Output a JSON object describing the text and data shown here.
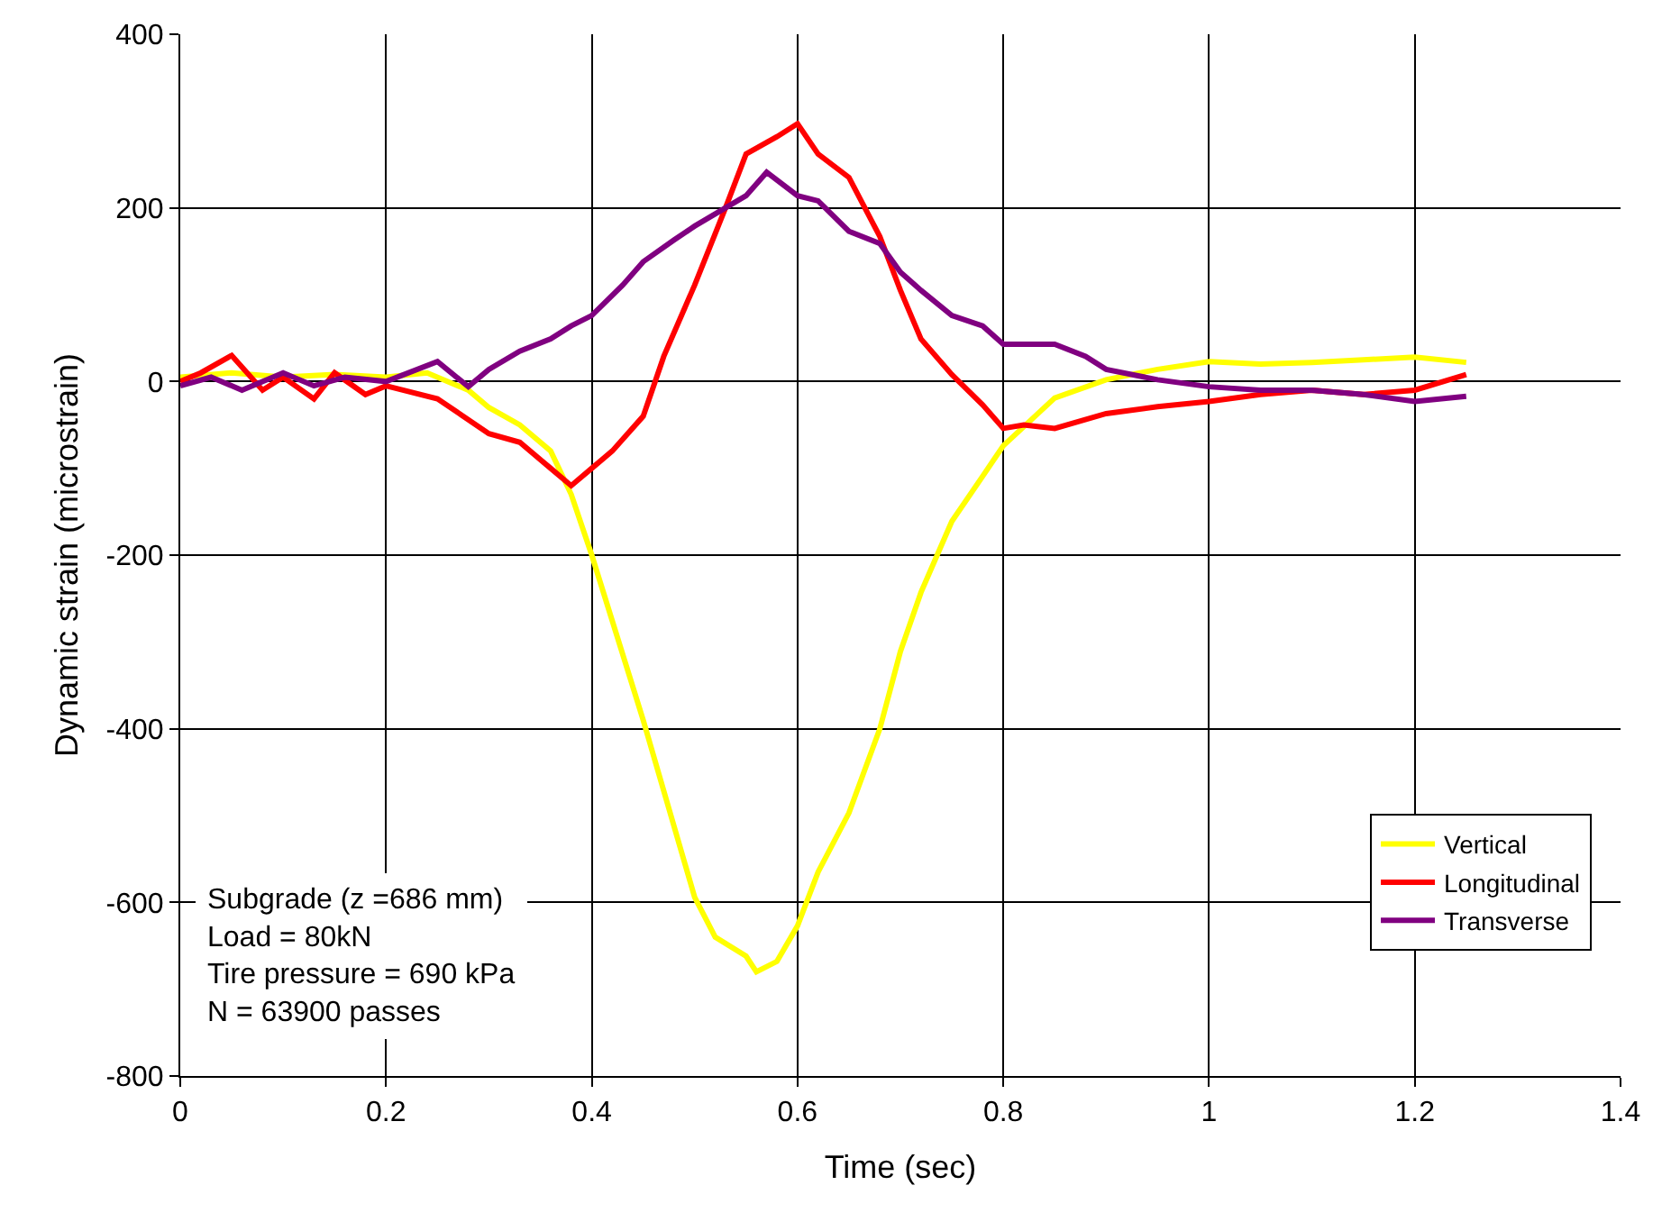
{
  "chart_data": {
    "type": "line",
    "xlabel": "Time (sec)",
    "ylabel": "Dynamic strain (microstrain)",
    "xlim": [
      0,
      1.4
    ],
    "xticks": [
      0,
      0.2,
      0.4,
      0.6,
      0.8,
      1,
      1.2,
      1.4
    ],
    "ylim": [
      -800,
      400
    ],
    "yticks": [
      -800,
      -600,
      -400,
      -200,
      0,
      200,
      400
    ],
    "grid": true,
    "legend": "bottom right",
    "marker": "none",
    "line_style": "solid",
    "annotations": [
      "Subgrade (z =686 mm)\nLoad = 80kN\nTire pressure = 690 kPa\nN = 63900 passes"
    ],
    "series": [
      {
        "name": "Vertical",
        "color": "#ffff00",
        "x": [
          0,
          0.05,
          0.1,
          0.15,
          0.2,
          0.24,
          0.28,
          0.3,
          0.33,
          0.36,
          0.38,
          0.4,
          0.45,
          0.5,
          0.52,
          0.55,
          0.56,
          0.58,
          0.6,
          0.62,
          0.65,
          0.68,
          0.7,
          0.72,
          0.75,
          0.78,
          0.8,
          0.85,
          0.9,
          0.95,
          1.0,
          1.05,
          1.1,
          1.15,
          1.2,
          1.25
        ],
        "values": [
          5,
          10,
          5,
          8,
          5,
          10,
          -10,
          -30,
          -50,
          -80,
          -130,
          -200,
          -390,
          -594,
          -640,
          -662,
          -680,
          -668,
          -627,
          -565,
          -497,
          -400,
          -311,
          -243,
          -161,
          -109,
          -74,
          -19,
          2,
          14,
          23,
          20,
          22,
          25,
          28,
          22
        ]
      },
      {
        "name": "Longitudinal",
        "color": "#ff0000",
        "x": [
          0,
          0.02,
          0.05,
          0.08,
          0.1,
          0.13,
          0.15,
          0.18,
          0.2,
          0.25,
          0.3,
          0.33,
          0.36,
          0.38,
          0.4,
          0.42,
          0.45,
          0.47,
          0.5,
          0.53,
          0.55,
          0.58,
          0.6,
          0.62,
          0.65,
          0.68,
          0.7,
          0.72,
          0.75,
          0.78,
          0.8,
          0.82,
          0.85,
          0.9,
          0.95,
          1.0,
          1.05,
          1.1,
          1.15,
          1.2,
          1.25
        ],
        "values": [
          0,
          10,
          30,
          -10,
          5,
          -20,
          10,
          -15,
          -5,
          -20,
          -60,
          -70,
          -100,
          -120,
          -100,
          -80,
          -40,
          29,
          111,
          200,
          262,
          282,
          297,
          262,
          235,
          167,
          105,
          49,
          8,
          -27,
          -54,
          -50,
          -54,
          -37,
          -29,
          -23,
          -15,
          -10,
          -15,
          -10,
          8
        ]
      },
      {
        "name": "Transverse",
        "color": "#800080",
        "x": [
          0,
          0.03,
          0.06,
          0.1,
          0.13,
          0.16,
          0.2,
          0.25,
          0.28,
          0.3,
          0.33,
          0.36,
          0.38,
          0.4,
          0.43,
          0.45,
          0.48,
          0.5,
          0.53,
          0.55,
          0.57,
          0.6,
          0.62,
          0.65,
          0.68,
          0.7,
          0.72,
          0.75,
          0.78,
          0.8,
          0.85,
          0.88,
          0.9,
          0.95,
          1.0,
          1.05,
          1.1,
          1.15,
          1.2,
          1.25
        ],
        "values": [
          -5,
          5,
          -10,
          10,
          -5,
          5,
          0,
          23,
          -6,
          14,
          35,
          49,
          64,
          76,
          111,
          138,
          163,
          179,
          200,
          214,
          241,
          214,
          208,
          173,
          159,
          126,
          105,
          76,
          64,
          43,
          43,
          29,
          14,
          2,
          -6,
          -10,
          -10,
          -15,
          -23,
          -17
        ]
      }
    ]
  }
}
